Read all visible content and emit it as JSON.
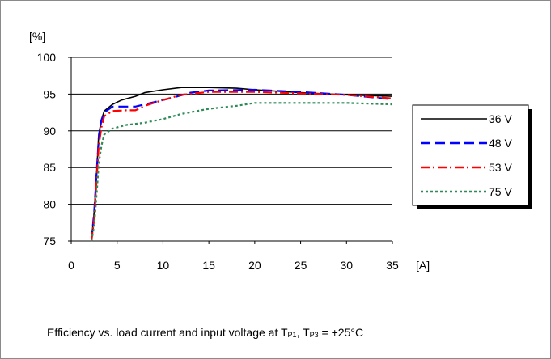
{
  "chart_data": {
    "type": "line",
    "title": "",
    "xlabel": "[A]",
    "ylabel": "[%]",
    "xlim": [
      0,
      35
    ],
    "ylim": [
      75,
      100
    ],
    "xticks": [
      0,
      5,
      10,
      15,
      20,
      25,
      30,
      35
    ],
    "yticks": [
      75,
      80,
      85,
      90,
      95,
      100
    ],
    "grid": "horizontal",
    "legend_position": "right",
    "series": [
      {
        "name": "36 V",
        "color": "#000000",
        "dash": "solid",
        "x": [
          2.2,
          2.5,
          2.8,
          3.0,
          3.3,
          3.6,
          4.5,
          5.5,
          7,
          8,
          10,
          12,
          15,
          18,
          20,
          25,
          30,
          35
        ],
        "y": [
          75,
          79,
          85,
          89.5,
          91.5,
          92.7,
          93.6,
          94.2,
          94.7,
          95.2,
          95.6,
          95.9,
          95.9,
          95.8,
          95.6,
          95.2,
          94.9,
          94.7
        ]
      },
      {
        "name": "48 V",
        "color": "#0000ff",
        "dash": "long-dash",
        "x": [
          2.2,
          2.5,
          2.8,
          3.0,
          3.3,
          3.6,
          4.5,
          6,
          7,
          9,
          11,
          13,
          15,
          20,
          25,
          30,
          35
        ],
        "y": [
          75,
          79,
          85,
          89,
          91.5,
          92.5,
          93.3,
          93.3,
          93.3,
          93.9,
          94.5,
          95.2,
          95.5,
          95.6,
          95.3,
          94.9,
          94.3
        ]
      },
      {
        "name": "53 V",
        "color": "#ff0000",
        "dash": "dash-dot",
        "x": [
          2.2,
          2.5,
          2.8,
          3.0,
          3.3,
          3.6,
          4.5,
          6,
          7,
          8,
          10,
          12,
          15,
          20,
          25,
          30,
          35
        ],
        "y": [
          75,
          78,
          84,
          88,
          90.5,
          92,
          92.7,
          92.8,
          92.8,
          93.4,
          94.2,
          94.9,
          95.3,
          95.3,
          95.1,
          94.9,
          94.4
        ]
      },
      {
        "name": "75 V",
        "color": "#2e8b57",
        "dash": "dotted",
        "x": [
          2.2,
          2.5,
          2.8,
          3.0,
          3.3,
          3.6,
          4.5,
          6,
          8,
          10,
          12,
          15,
          18,
          20,
          25,
          30,
          35
        ],
        "y": [
          75,
          77,
          82,
          85.5,
          88,
          89.5,
          90.3,
          90.8,
          91.1,
          91.6,
          92.3,
          93.0,
          93.4,
          93.8,
          93.8,
          93.8,
          93.6
        ]
      }
    ],
    "caption": {
      "prefix": "Efficiency vs. load current and input voltage at T",
      "sub1": "P1",
      "mid": ", T",
      "sub2": "P3",
      "suffix": " = +25°C"
    }
  }
}
